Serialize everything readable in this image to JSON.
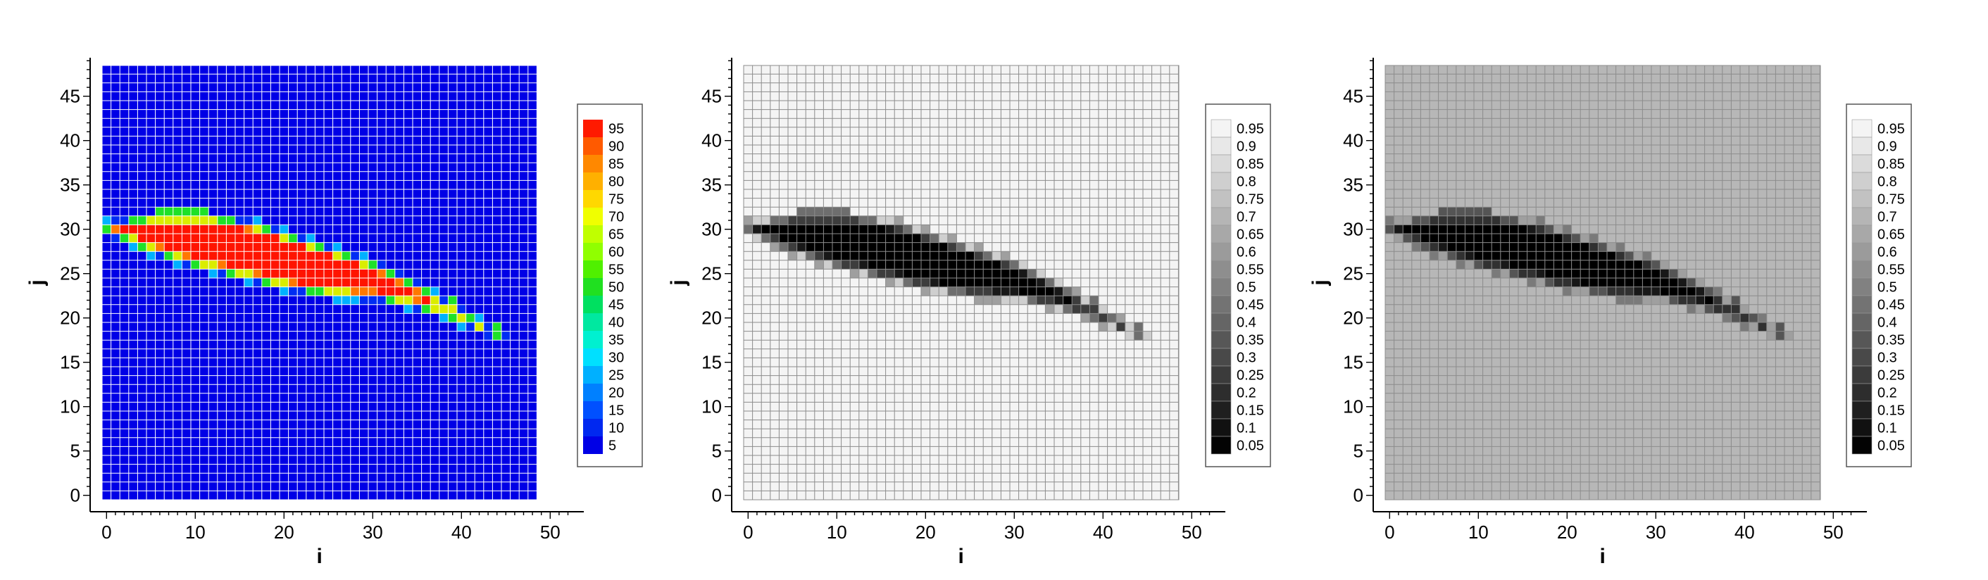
{
  "chart_data": [
    {
      "type": "heatmap",
      "xlabel": "i",
      "ylabel": "j",
      "x_ticks": [
        0,
        10,
        20,
        30,
        40,
        50
      ],
      "y_ticks": [
        0,
        5,
        10,
        15,
        20,
        25,
        30,
        35,
        40,
        45
      ],
      "xlim": [
        0,
        48
      ],
      "ylim": [
        0,
        48
      ],
      "grid": true,
      "grid_color": "#ffffff",
      "background_value": 0,
      "colormap": "rainbow",
      "colorbar": {
        "labels": [
          "95",
          "90",
          "85",
          "80",
          "75",
          "70",
          "65",
          "60",
          "55",
          "50",
          "45",
          "40",
          "35",
          "30",
          "25",
          "20",
          "15",
          "10",
          "5"
        ],
        "colors": [
          "#ff1a00",
          "#ff5a00",
          "#ff8800",
          "#ffb000",
          "#ffd800",
          "#f0ff00",
          "#c0ff00",
          "#90ff00",
          "#50f000",
          "#20e020",
          "#00e060",
          "#00e8a0",
          "#00f0d0",
          "#00e0ff",
          "#00b0ff",
          "#0080ff",
          "#0050ff",
          "#0028f0",
          "#0000e6"
        ]
      },
      "blade": {
        "points": [
          [
            0,
            31
          ],
          [
            6,
            32
          ],
          [
            12,
            32
          ],
          [
            18,
            31
          ],
          [
            24,
            29
          ],
          [
            30,
            27
          ],
          [
            36,
            24
          ],
          [
            41,
            21
          ],
          [
            46,
            18
          ],
          [
            44,
            18.5
          ],
          [
            38,
            21
          ],
          [
            32,
            22.5
          ],
          [
            26,
            23
          ],
          [
            20,
            24
          ],
          [
            14,
            25.5
          ],
          [
            8,
            27
          ],
          [
            3,
            29
          ],
          [
            0,
            30.5
          ]
        ],
        "interior_value": 100,
        "edge_values": [
          10,
          30,
          50,
          70,
          90
        ]
      }
    },
    {
      "type": "heatmap",
      "xlabel": "i",
      "ylabel": "j",
      "x_ticks": [
        0,
        10,
        20,
        30,
        40,
        50
      ],
      "y_ticks": [
        0,
        5,
        10,
        15,
        20,
        25,
        30,
        35,
        40,
        45
      ],
      "xlim": [
        0,
        48
      ],
      "ylim": [
        0,
        48
      ],
      "grid": true,
      "grid_color": "#8c8c8c",
      "background_value": 1,
      "colormap": "gray",
      "colorbar": {
        "labels": [
          "0.95",
          "0.9",
          "0.85",
          "0.8",
          "0.75",
          "0.7",
          "0.65",
          "0.6",
          "0.55",
          "0.5",
          "0.45",
          "0.4",
          "0.35",
          "0.3",
          "0.25",
          "0.2",
          "0.15",
          "0.1",
          "0.05"
        ],
        "colors": [
          "#f4f4f4",
          "#e8e8e8",
          "#dbdbdb",
          "#cfcfcf",
          "#c2c2c2",
          "#b5b5b5",
          "#a8a8a8",
          "#9b9b9b",
          "#8e8e8e",
          "#818181",
          "#737373",
          "#656565",
          "#575757",
          "#494949",
          "#3b3b3b",
          "#2d2d2d",
          "#1f1f1f",
          "#111111",
          "#030303"
        ]
      },
      "blade": {
        "points": [
          [
            0,
            31
          ],
          [
            6,
            32
          ],
          [
            12,
            32
          ],
          [
            18,
            31
          ],
          [
            24,
            29
          ],
          [
            30,
            27
          ],
          [
            36,
            24
          ],
          [
            41,
            21
          ],
          [
            46,
            18
          ],
          [
            44,
            18.5
          ],
          [
            38,
            21
          ],
          [
            32,
            22.5
          ],
          [
            26,
            23
          ],
          [
            20,
            24
          ],
          [
            14,
            25.5
          ],
          [
            8,
            27
          ],
          [
            3,
            29
          ],
          [
            0,
            30.5
          ]
        ],
        "interior_value": 0,
        "edge_values": [
          0.85,
          0.65,
          0.45,
          0.25,
          0.1
        ]
      }
    },
    {
      "type": "heatmap",
      "xlabel": "i",
      "ylabel": "j",
      "x_ticks": [
        0,
        10,
        20,
        30,
        40,
        50
      ],
      "y_ticks": [
        0,
        5,
        10,
        15,
        20,
        25,
        30,
        35,
        40,
        45
      ],
      "xlim": [
        0,
        48
      ],
      "ylim": [
        0,
        48
      ],
      "grid": true,
      "grid_color": "#8c8c8c",
      "background_value": 0.75,
      "colormap": "gray",
      "colorbar": {
        "labels": [
          "0.95",
          "0.9",
          "0.85",
          "0.8",
          "0.75",
          "0.7",
          "0.65",
          "0.6",
          "0.55",
          "0.5",
          "0.45",
          "0.4",
          "0.35",
          "0.3",
          "0.25",
          "0.2",
          "0.15",
          "0.1",
          "0.05"
        ],
        "colors": [
          "#f4f4f4",
          "#e8e8e8",
          "#dbdbdb",
          "#cfcfcf",
          "#c2c2c2",
          "#b5b5b5",
          "#a8a8a8",
          "#9b9b9b",
          "#8e8e8e",
          "#818181",
          "#737373",
          "#656565",
          "#575757",
          "#494949",
          "#3b3b3b",
          "#2d2d2d",
          "#1f1f1f",
          "#111111",
          "#030303"
        ]
      },
      "blade": {
        "points": [
          [
            0,
            31
          ],
          [
            6,
            32
          ],
          [
            12,
            32
          ],
          [
            18,
            31
          ],
          [
            24,
            29
          ],
          [
            30,
            27
          ],
          [
            36,
            24
          ],
          [
            41,
            21
          ],
          [
            46,
            18
          ],
          [
            44,
            18.5
          ],
          [
            38,
            21
          ],
          [
            32,
            22.5
          ],
          [
            26,
            23
          ],
          [
            20,
            24
          ],
          [
            14,
            25.5
          ],
          [
            8,
            27
          ],
          [
            3,
            29
          ],
          [
            0,
            30.5
          ]
        ],
        "interior_value": 0,
        "edge_values": [
          0.65,
          0.5,
          0.35,
          0.2,
          0.1
        ]
      }
    }
  ]
}
